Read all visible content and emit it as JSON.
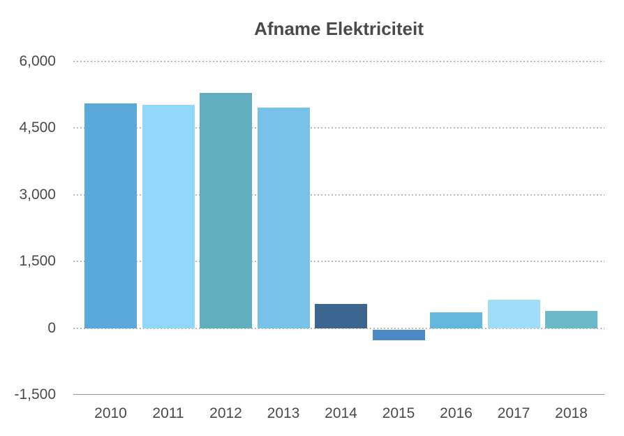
{
  "chart_data": {
    "type": "bar",
    "title": "Afname Elektriciteit",
    "xlabel": "",
    "ylabel": "",
    "categories": [
      "2010",
      "2011",
      "2012",
      "2013",
      "2014",
      "2015",
      "2016",
      "2017",
      "2018"
    ],
    "values": [
      5050,
      5030,
      5290,
      4970,
      540,
      -280,
      350,
      640,
      390
    ],
    "bar_colors": [
      "#5BA9D8",
      "#93D7F8",
      "#61AEBE",
      "#78C2E9",
      "#3C6690",
      "#4C8AC6",
      "#63B6DC",
      "#A0DDF9",
      "#69B9C8"
    ],
    "ylim": [
      -1500,
      6000
    ],
    "yticks": [
      -1500,
      0,
      1500,
      3000,
      4500,
      6000
    ],
    "ytick_labels": [
      "-1,500",
      "0",
      "1,500",
      "3,000",
      "4,500",
      "6,000"
    ],
    "grid": "horizontal-dotted",
    "legend": "none",
    "baseline_tick": -1500
  },
  "colors": {
    "background": "#FFFFFF",
    "title_text": "#4A4A4A",
    "axis_text": "#4A4A4A",
    "gridline": "#B9B9B9",
    "axis_line": "#999999"
  }
}
